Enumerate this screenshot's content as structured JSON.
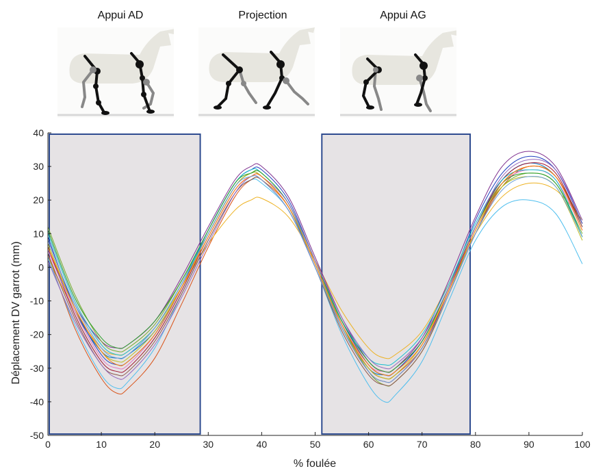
{
  "phases": {
    "left": "Appui AD",
    "middle": "Projection",
    "right": "Appui AG"
  },
  "chart_data": {
    "type": "line",
    "title": "",
    "xlabel": "% foulée",
    "ylabel": "Déplacement DV garrot (mm)",
    "xlim": [
      0,
      100
    ],
    "ylim": [
      -50,
      40
    ],
    "xticks": [
      0,
      10,
      20,
      30,
      40,
      50,
      60,
      70,
      80,
      90,
      100
    ],
    "yticks": [
      -50,
      -40,
      -30,
      -20,
      -10,
      0,
      10,
      20,
      30,
      40
    ],
    "grid": false,
    "legend": "none",
    "shaded_regions": [
      {
        "x_start": 0,
        "x_end": 28.5,
        "fill": "#e6e3e5",
        "border": "#2e4b8f"
      },
      {
        "x_start": 51,
        "x_end": 79,
        "fill": "#e6e3e5",
        "border": "#2e4b8f"
      }
    ],
    "x": [
      0,
      5,
      10,
      13,
      15,
      20,
      25,
      30,
      35,
      38,
      40,
      45,
      50,
      55,
      60,
      63,
      65,
      70,
      75,
      80,
      85,
      90,
      95,
      100
    ],
    "series": [
      {
        "color": "#0072bd",
        "values": [
          6,
          -13,
          -25,
          -27,
          -26,
          -19,
          -6,
          10,
          24,
          28,
          27,
          18,
          0,
          -18,
          -30,
          -32,
          -31,
          -22,
          -6,
          12,
          26,
          31,
          27,
          12
        ]
      },
      {
        "color": "#d95319",
        "values": [
          4,
          -18,
          -33,
          -37.5,
          -36,
          -27,
          -11,
          6,
          21,
          26,
          26,
          18,
          1,
          -17,
          -30,
          -33,
          -32,
          -24,
          -8,
          10,
          24,
          30,
          27,
          13
        ]
      },
      {
        "color": "#edb120",
        "values": [
          3,
          -13,
          -24,
          -26,
          -25,
          -18,
          -6,
          7,
          17,
          20,
          20.5,
          15,
          2,
          -13,
          -24,
          -27,
          -26,
          -19,
          -5,
          10,
          21,
          25,
          23,
          14
        ]
      },
      {
        "color": "#7e2f8e",
        "values": [
          8,
          -11,
          -22,
          -24,
          -23,
          -16,
          -3,
          12,
          26,
          30,
          30,
          21,
          3,
          -15,
          -28,
          -31,
          -30,
          -21,
          -4,
          15,
          30,
          34.5,
          30,
          14
        ]
      },
      {
        "color": "#77ac30",
        "values": [
          12,
          -8,
          -22,
          -25,
          -24,
          -17,
          -4,
          10,
          24,
          28,
          28,
          19,
          2,
          -17,
          -31,
          -35,
          -34,
          -25,
          -8,
          11,
          24,
          28,
          25,
          10
        ]
      },
      {
        "color": "#4dbeee",
        "values": [
          3,
          -17,
          -32,
          -36,
          -34,
          -24,
          -8,
          8,
          22,
          26,
          25,
          17,
          0,
          -20,
          -35,
          -40,
          -38,
          -28,
          -10,
          8,
          18,
          20,
          16,
          1
        ]
      },
      {
        "color": "#a2142f",
        "values": [
          6,
          -14,
          -28,
          -31,
          -30,
          -21,
          -7,
          9,
          23,
          27,
          27,
          18,
          1,
          -18,
          -31,
          -34,
          -33,
          -24,
          -7,
          12,
          26,
          31,
          28,
          12
        ]
      },
      {
        "color": "#1f3fbf",
        "values": [
          9,
          -12,
          -26,
          -29,
          -28,
          -20,
          -6,
          11,
          25,
          29,
          29,
          20,
          2,
          -16,
          -29,
          -32,
          -31,
          -22,
          -6,
          14,
          28,
          33,
          29,
          13
        ]
      },
      {
        "color": "#e377c2",
        "values": [
          5,
          -13,
          -27,
          -30,
          -29,
          -20,
          -6,
          9,
          23,
          27,
          26,
          17,
          0,
          -17,
          -29,
          -31,
          -30,
          -22,
          -6,
          12,
          25,
          29,
          26,
          11
        ]
      },
      {
        "color": "#17becf",
        "values": [
          10,
          -10,
          -23,
          -26,
          -25,
          -18,
          -5,
          11,
          25,
          29,
          28,
          19,
          1,
          -16,
          -27,
          -29,
          -28,
          -20,
          -5,
          13,
          26,
          29,
          26,
          9
        ]
      },
      {
        "color": "#bcbd22",
        "values": [
          7,
          -12,
          -25,
          -28,
          -27,
          -19,
          -6,
          10,
          24,
          28,
          27,
          18,
          1,
          -18,
          -30,
          -33,
          -32,
          -23,
          -6,
          12,
          24,
          27,
          24,
          8
        ]
      },
      {
        "color": "#8c564b",
        "values": [
          4,
          -15,
          -29,
          -32,
          -31,
          -22,
          -8,
          8,
          22,
          26,
          26,
          17,
          0,
          -19,
          -32,
          -35,
          -34,
          -25,
          -8,
          10,
          25,
          30,
          27,
          12
        ]
      },
      {
        "color": "#2ca02c",
        "values": [
          11,
          -9,
          -21,
          -24,
          -23,
          -16,
          -4,
          11,
          25,
          28,
          28,
          19,
          2,
          -16,
          -28,
          -31,
          -30,
          -22,
          -6,
          12,
          25,
          28,
          25,
          9
        ]
      },
      {
        "color": "#9467bd",
        "values": [
          2,
          -16,
          -29,
          -33,
          -32,
          -23,
          -9,
          7,
          22,
          27,
          27,
          19,
          2,
          -15,
          -27,
          -30,
          -29,
          -21,
          -6,
          12,
          27,
          32,
          29,
          14
        ]
      },
      {
        "color": "#ff7f0e",
        "values": [
          6,
          -12,
          -25,
          -29,
          -28,
          -20,
          -6,
          9,
          23,
          27,
          27,
          18,
          1,
          -17,
          -29,
          -32,
          -31,
          -23,
          -7,
          11,
          25,
          30,
          27,
          11
        ]
      },
      {
        "color": "#6a9fd8",
        "values": [
          8,
          -11,
          -24,
          -27,
          -26,
          -18,
          -5,
          10,
          24,
          27,
          26,
          17,
          0,
          -18,
          -31,
          -34,
          -33,
          -24,
          -8,
          10,
          23,
          27,
          24,
          9
        ]
      }
    ]
  }
}
